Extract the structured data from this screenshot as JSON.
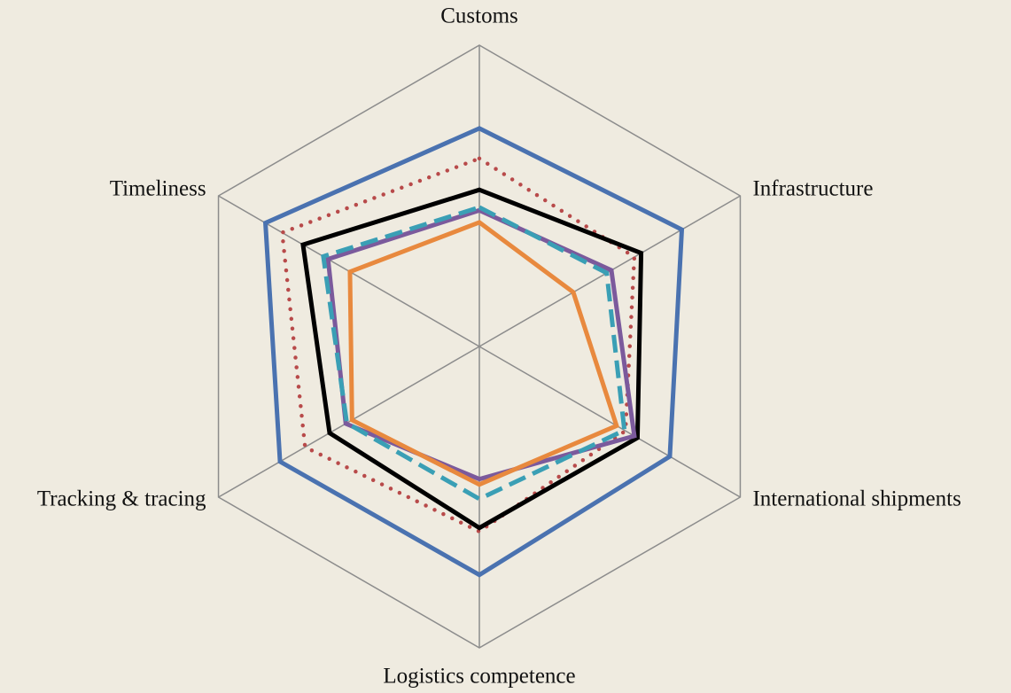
{
  "chart_data": {
    "type": "radar",
    "categories": [
      "Customs",
      "Infrastructure",
      "International shipments",
      "Logistics competence",
      "Tracking & tracing",
      "Timeliness"
    ],
    "ylim": [
      0,
      5
    ],
    "series": [
      {
        "color": "#4a72b0",
        "line_style": "solid",
        "values": [
          3.62,
          3.88,
          3.65,
          3.79,
          3.82,
          4.1
        ]
      },
      {
        "color": "#b84a4a",
        "line_style": "dotted",
        "values": [
          3.12,
          2.97,
          2.8,
          3.07,
          3.34,
          3.78
        ]
      },
      {
        "color": "#000000",
        "line_style": "solid",
        "values": [
          2.6,
          3.1,
          3.03,
          3.01,
          2.87,
          3.38
        ]
      },
      {
        "color": "#7b5a9c",
        "line_style": "solid",
        "values": [
          2.26,
          2.53,
          2.97,
          2.2,
          2.56,
          2.9
        ]
      },
      {
        "color": "#3a9fb5",
        "line_style": "dashed",
        "values": [
          2.31,
          2.44,
          2.78,
          2.53,
          2.54,
          2.99
        ]
      },
      {
        "color": "#e8893e",
        "line_style": "solid",
        "values": [
          2.06,
          1.8,
          2.63,
          2.29,
          2.44,
          2.48
        ]
      }
    ]
  }
}
